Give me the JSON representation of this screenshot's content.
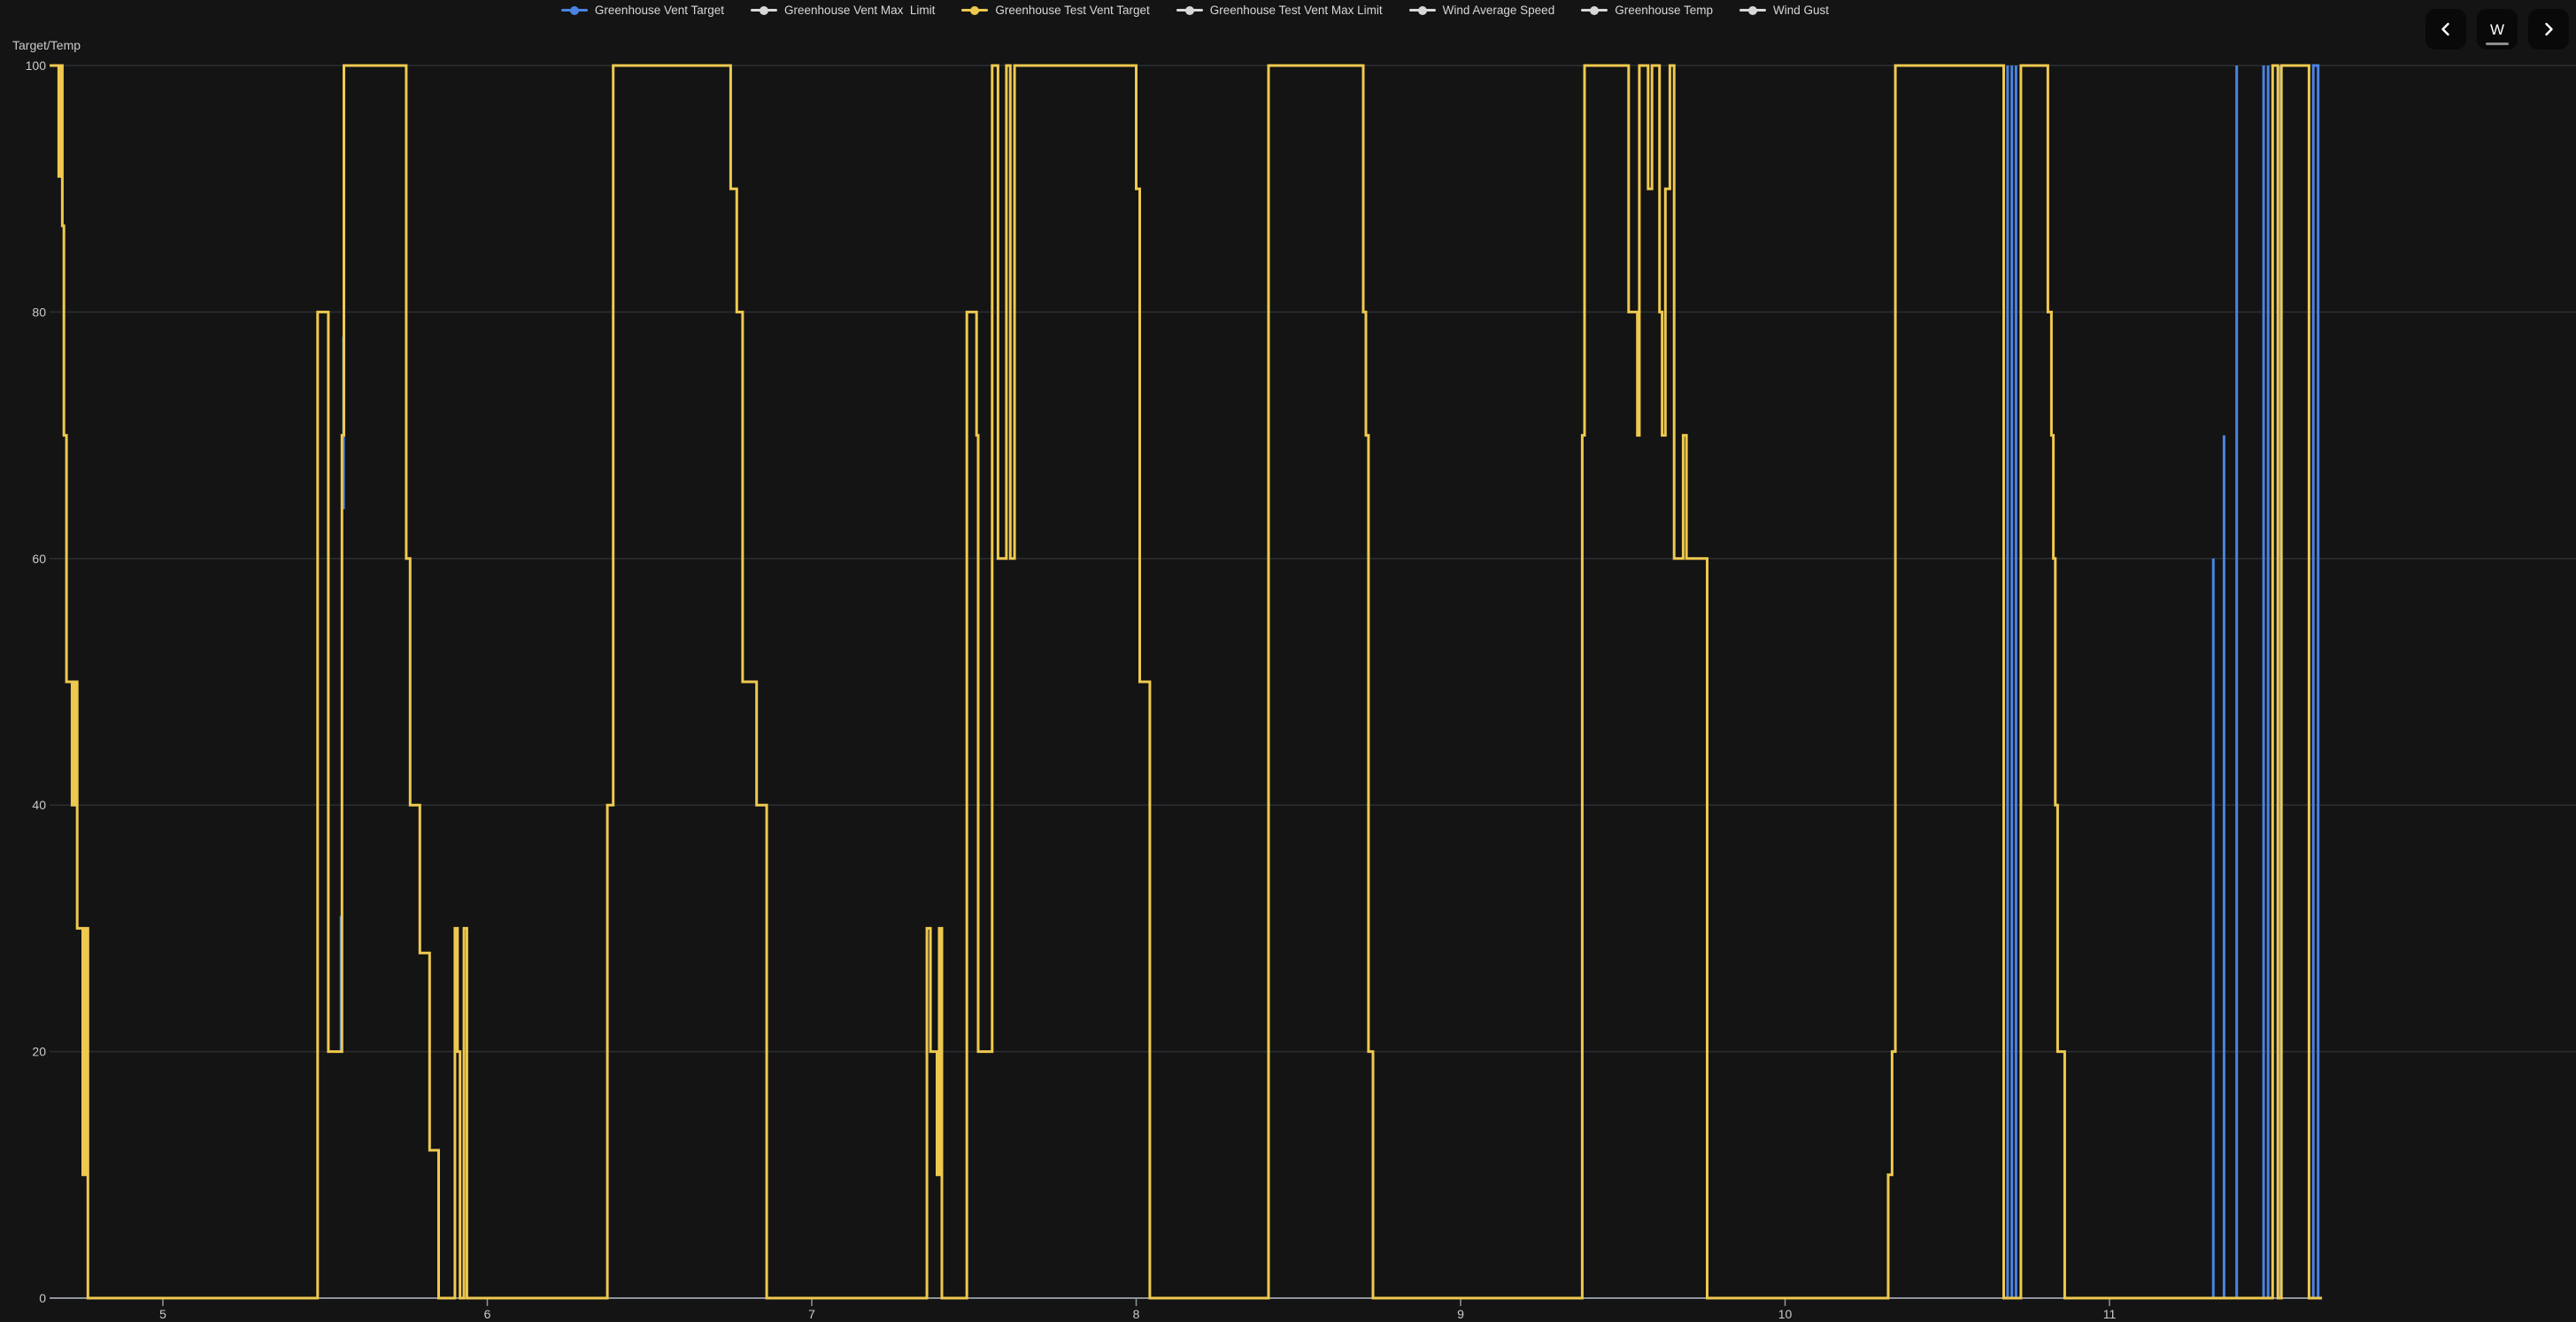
{
  "controls": {
    "prev": "previous period",
    "period_label": "W",
    "next": "next period"
  },
  "legend": {
    "items": [
      {
        "label": "Greenhouse Vent Target",
        "color": "#4a83e2"
      },
      {
        "label": "Greenhouse Vent Max  Limit",
        "color": "#d8d8d8"
      },
      {
        "label": "Greenhouse Test Vent Target",
        "color": "#eec94f"
      },
      {
        "label": "Greenhouse Test Vent Max Limit",
        "color": "#d8d8d8"
      },
      {
        "label": "Wind Average Speed",
        "color": "#d8d8d8"
      },
      {
        "label": "Greenhouse Temp",
        "color": "#d8d8d8"
      },
      {
        "label": "Wind Gust",
        "color": "#d8d8d8"
      }
    ]
  },
  "chart_data": {
    "type": "line",
    "style": "step",
    "ylabel": "Target/Temp",
    "y_ticks": [
      0,
      20,
      40,
      60,
      80,
      100
    ],
    "x_ticks": [
      5,
      6,
      7,
      8,
      9,
      10,
      11
    ],
    "ylim": [
      0,
      100
    ],
    "xlim_days": [
      4.65,
      12.44
    ],
    "grid": "horizontal-only",
    "colors": {
      "grid": "#2c2e33",
      "axis": "#8f939a",
      "tick_text": "#c9cacc",
      "background": "#141414"
    },
    "axis_line_day_end": 11.655,
    "series": [
      {
        "name": "Greenhouse Vent Target",
        "color": "#4a83e2",
        "visible": true,
        "segments": [
          [
            [
              5.549,
              20
            ],
            [
              5.549,
              31
            ]
          ],
          [
            [
              5.557,
              64
            ],
            [
              5.557,
              78
            ]
          ],
          [
            [
              10.686,
              0
            ],
            [
              10.686,
              100
            ]
          ],
          [
            [
              10.699,
              0
            ],
            [
              10.699,
              100
            ]
          ],
          [
            [
              10.712,
              0
            ],
            [
              10.712,
              100
            ]
          ],
          [
            [
              11.32,
              0
            ],
            [
              11.32,
              60
            ]
          ],
          [
            [
              11.353,
              0
            ],
            [
              11.353,
              70
            ]
          ],
          [
            [
              11.392,
              0
            ],
            [
              11.392,
              100
            ]
          ],
          [
            [
              11.475,
              0
            ],
            [
              11.475,
              100
            ]
          ],
          [
            [
              11.489,
              0
            ],
            [
              11.489,
              100
            ]
          ],
          [
            [
              11.524,
              0
            ],
            [
              11.524,
              100
            ]
          ],
          [
            [
              11.628,
              0
            ],
            [
              11.628,
              100
            ],
            [
              11.643,
              100
            ],
            [
              11.643,
              0
            ]
          ]
        ]
      },
      {
        "name": "Greenhouse Vent Max  Limit",
        "color": "#d8d8d8",
        "visible": true,
        "segments": []
      },
      {
        "name": "Greenhouse Test Vent Target",
        "color": "#eec94f",
        "visible": true,
        "segments": [
          [
            [
              4.651,
              100
            ],
            [
              4.679,
              100
            ],
            [
              4.679,
              91
            ],
            [
              4.687,
              91
            ],
            [
              4.687,
              100
            ],
            [
              4.69,
              100
            ],
            [
              4.69,
              87
            ],
            [
              4.695,
              87
            ],
            [
              4.695,
              70
            ],
            [
              4.703,
              70
            ],
            [
              4.703,
              50
            ],
            [
              4.72,
              50
            ],
            [
              4.72,
              40
            ],
            [
              4.728,
              40
            ],
            [
              4.728,
              50
            ],
            [
              4.736,
              50
            ],
            [
              4.736,
              30
            ],
            [
              4.753,
              30
            ],
            [
              4.753,
              10
            ],
            [
              4.761,
              10
            ],
            [
              4.761,
              30
            ],
            [
              4.769,
              30
            ],
            [
              4.769,
              0
            ],
            [
              5.477,
              0
            ],
            [
              5.477,
              80
            ],
            [
              5.51,
              80
            ],
            [
              5.51,
              20
            ],
            [
              5.552,
              20
            ],
            [
              5.552,
              70
            ],
            [
              5.558,
              70
            ],
            [
              5.558,
              100
            ],
            [
              5.75,
              100
            ],
            [
              5.75,
              60
            ],
            [
              5.762,
              60
            ],
            [
              5.762,
              40
            ],
            [
              5.792,
              40
            ],
            [
              5.792,
              28
            ],
            [
              5.822,
              28
            ],
            [
              5.822,
              12
            ],
            [
              5.85,
              12
            ],
            [
              5.85,
              0
            ],
            [
              5.9,
              0
            ],
            [
              5.9,
              30
            ],
            [
              5.908,
              30
            ],
            [
              5.908,
              20
            ],
            [
              5.916,
              20
            ],
            [
              5.916,
              0
            ],
            [
              5.928,
              0
            ],
            [
              5.928,
              30
            ],
            [
              5.937,
              30
            ],
            [
              5.937,
              0
            ],
            [
              6.37,
              0
            ],
            [
              6.37,
              40
            ],
            [
              6.388,
              40
            ],
            [
              6.388,
              100
            ],
            [
              6.75,
              100
            ],
            [
              6.75,
              90
            ],
            [
              6.769,
              90
            ],
            [
              6.769,
              80
            ],
            [
              6.787,
              80
            ],
            [
              6.787,
              50
            ],
            [
              6.83,
              50
            ],
            [
              6.83,
              40
            ],
            [
              6.861,
              40
            ],
            [
              6.861,
              0
            ],
            [
              7.355,
              0
            ],
            [
              7.355,
              30
            ],
            [
              7.366,
              30
            ],
            [
              7.366,
              20
            ],
            [
              7.386,
              20
            ],
            [
              7.386,
              10
            ],
            [
              7.393,
              10
            ],
            [
              7.393,
              30
            ],
            [
              7.401,
              30
            ],
            [
              7.401,
              0
            ],
            [
              7.478,
              0
            ],
            [
              7.478,
              80
            ],
            [
              7.508,
              80
            ],
            [
              7.508,
              70
            ],
            [
              7.513,
              70
            ],
            [
              7.513,
              20
            ],
            [
              7.556,
              20
            ],
            [
              7.556,
              100
            ],
            [
              7.574,
              100
            ],
            [
              7.574,
              60
            ],
            [
              7.6,
              60
            ],
            [
              7.6,
              100
            ],
            [
              7.612,
              100
            ],
            [
              7.612,
              60
            ],
            [
              7.625,
              60
            ],
            [
              7.625,
              100
            ],
            [
              8.0,
              100
            ],
            [
              8.0,
              90
            ],
            [
              8.011,
              90
            ],
            [
              8.011,
              50
            ],
            [
              8.042,
              50
            ],
            [
              8.042,
              0
            ],
            [
              8.408,
              0
            ],
            [
              8.408,
              100
            ],
            [
              8.7,
              100
            ],
            [
              8.7,
              80
            ],
            [
              8.708,
              80
            ],
            [
              8.708,
              70
            ],
            [
              8.716,
              70
            ],
            [
              8.716,
              20
            ],
            [
              8.73,
              20
            ],
            [
              8.73,
              0
            ],
            [
              9.375,
              0
            ],
            [
              9.375,
              70
            ],
            [
              9.382,
              70
            ],
            [
              9.382,
              100
            ],
            [
              9.518,
              100
            ],
            [
              9.518,
              80
            ],
            [
              9.545,
              80
            ],
            [
              9.545,
              70
            ],
            [
              9.551,
              70
            ],
            [
              9.551,
              100
            ],
            [
              9.578,
              100
            ],
            [
              9.578,
              90
            ],
            [
              9.59,
              90
            ],
            [
              9.59,
              100
            ],
            [
              9.613,
              100
            ],
            [
              9.613,
              80
            ],
            [
              9.621,
              80
            ],
            [
              9.621,
              70
            ],
            [
              9.631,
              70
            ],
            [
              9.631,
              90
            ],
            [
              9.645,
              90
            ],
            [
              9.645,
              100
            ],
            [
              9.658,
              100
            ],
            [
              9.658,
              60
            ],
            [
              9.686,
              60
            ],
            [
              9.686,
              70
            ],
            [
              9.696,
              70
            ],
            [
              9.696,
              60
            ],
            [
              9.76,
              60
            ],
            [
              9.76,
              0
            ],
            [
              10.318,
              0
            ],
            [
              10.318,
              10
            ],
            [
              10.33,
              10
            ],
            [
              10.33,
              20
            ],
            [
              10.34,
              20
            ],
            [
              10.34,
              100
            ],
            [
              10.674,
              100
            ],
            [
              10.674,
              0
            ],
            [
              10.727,
              0
            ],
            [
              10.727,
              100
            ],
            [
              10.81,
              100
            ],
            [
              10.81,
              80
            ],
            [
              10.821,
              80
            ],
            [
              10.821,
              70
            ],
            [
              10.827,
              70
            ],
            [
              10.827,
              60
            ],
            [
              10.833,
              60
            ],
            [
              10.833,
              40
            ],
            [
              10.84,
              40
            ],
            [
              10.84,
              20
            ],
            [
              10.862,
              20
            ],
            [
              10.862,
              0
            ],
            [
              11.503,
              0
            ],
            [
              11.503,
              100
            ],
            [
              11.519,
              100
            ],
            [
              11.519,
              0
            ],
            [
              11.53,
              0
            ],
            [
              11.53,
              100
            ],
            [
              11.615,
              100
            ],
            [
              11.615,
              0
            ],
            [
              11.655,
              0
            ]
          ]
        ]
      },
      {
        "name": "Greenhouse Test Vent Max Limit",
        "color": "#d8d8d8",
        "visible": true,
        "segments": []
      },
      {
        "name": "Wind Average Speed",
        "color": "#d8d8d8",
        "visible": true,
        "segments": []
      },
      {
        "name": "Greenhouse Temp",
        "color": "#d8d8d8",
        "visible": true,
        "segments": []
      },
      {
        "name": "Wind Gust",
        "color": "#d8d8d8",
        "visible": true,
        "segments": []
      }
    ]
  }
}
